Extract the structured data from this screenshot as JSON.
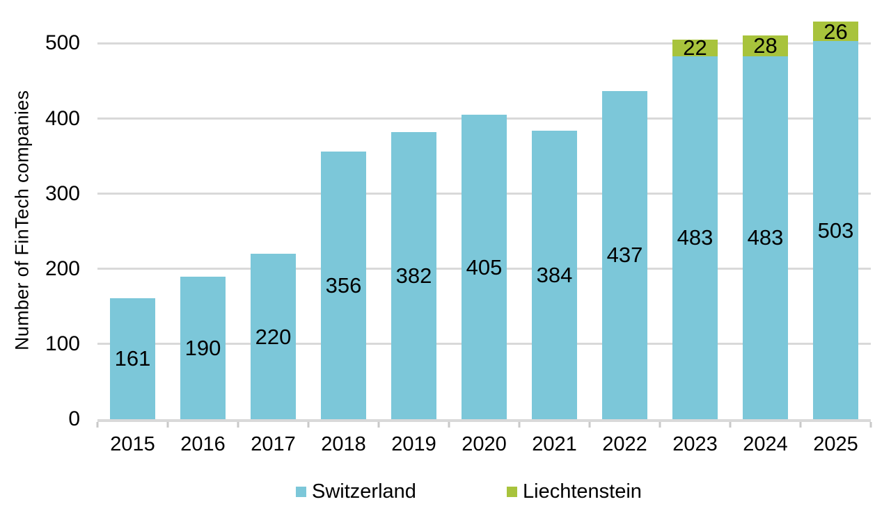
{
  "chart_data": {
    "type": "bar",
    "stacked": true,
    "title": "",
    "xlabel": "",
    "ylabel": "Number of FinTech companies",
    "categories": [
      "2015",
      "2016",
      "2017",
      "2018",
      "2019",
      "2020",
      "2021",
      "2022",
      "2023",
      "2024",
      "2025"
    ],
    "series": [
      {
        "name": "Switzerland",
        "color": "#7CC7D9",
        "values": [
          161,
          190,
          220,
          356,
          382,
          405,
          384,
          437,
          483,
          483,
          503
        ]
      },
      {
        "name": "Liechtenstein",
        "color": "#A8C33C",
        "values": [
          0,
          0,
          0,
          0,
          0,
          0,
          0,
          0,
          22,
          28,
          26
        ]
      }
    ],
    "yticks": [
      0,
      100,
      200,
      300,
      400,
      500
    ],
    "ylim": [
      0,
      530
    ],
    "grid": true,
    "legend_position": "bottom",
    "colors": {
      "gridline": "#D9D9D9",
      "axis_line": "#D9D9D9",
      "tick_mark": "#C9C9C9",
      "label_text": "#000000",
      "background": "#FFFFFF"
    }
  }
}
